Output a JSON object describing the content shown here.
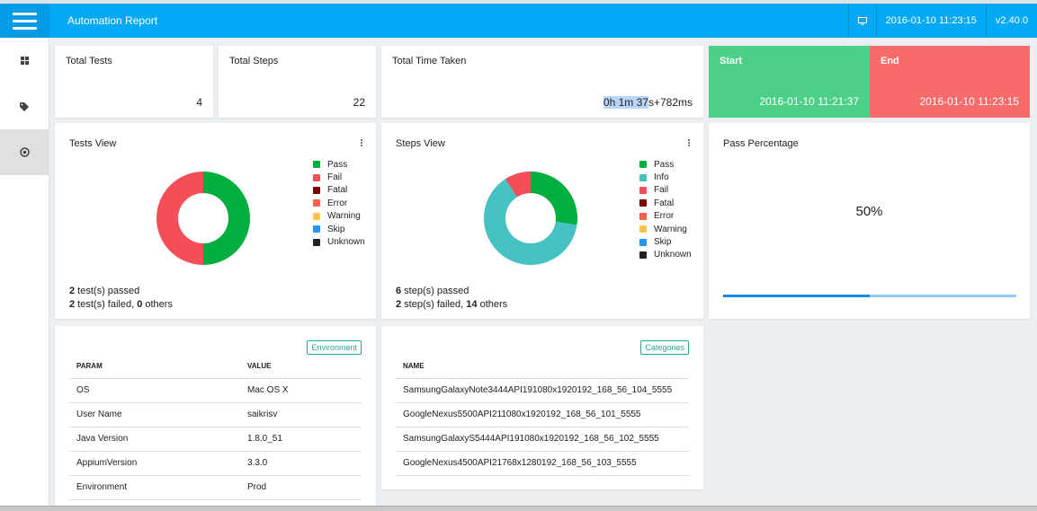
{
  "navbar": {
    "title": "Automation Report",
    "icon": "monitor-icon",
    "datetime": "2016-01-10 11:23:15",
    "version": "v2.40.0"
  },
  "sidebar": {
    "items": [
      {
        "icon": "dashboard-icon"
      },
      {
        "icon": "tag-icon"
      },
      {
        "icon": "target-icon"
      }
    ]
  },
  "stats": {
    "total_tests": {
      "label": "Total Tests",
      "value": "4"
    },
    "total_steps": {
      "label": "Total Steps",
      "value": "22"
    },
    "total_time": {
      "label": "Total Time Taken",
      "value_highlighted": "0h 1m 37",
      "value_rest": "s+782ms"
    },
    "start": {
      "label": "Start",
      "value": "2016-01-10 11:21:37"
    },
    "end": {
      "label": "End",
      "value": "2016-01-10 11:23:15"
    }
  },
  "tests_view": {
    "title": "Tests View",
    "legend": [
      "Pass",
      "Fail",
      "Fatal",
      "Error",
      "Warning",
      "Skip",
      "Unknown"
    ],
    "summary": {
      "passed_count": "2",
      "passed_text": " test(s) passed",
      "failed_count": "2",
      "failed_text": " test(s) failed, ",
      "others_count": "0",
      "others_text": " others"
    }
  },
  "steps_view": {
    "title": "Steps View",
    "legend": [
      "Pass",
      "Info",
      "Fail",
      "Fatal",
      "Error",
      "Warning",
      "Skip",
      "Unknown"
    ],
    "summary": {
      "passed_count": "6",
      "passed_text": " step(s) passed",
      "failed_count": "2",
      "failed_text": " step(s) failed, ",
      "others_count": "14",
      "others_text": " others"
    }
  },
  "pass_percentage": {
    "title": "Pass Percentage",
    "value": "50%",
    "fraction": 0.5
  },
  "environment": {
    "badge": "Environment",
    "headers": [
      "PARAM",
      "VALUE"
    ],
    "rows": [
      [
        "OS",
        "Mac OS X"
      ],
      [
        "User Name",
        "saikrisv"
      ],
      [
        "Java Version",
        "1.8.0_51"
      ],
      [
        "AppiumVersion",
        "3.3.0"
      ],
      [
        "Environment",
        "Prod"
      ]
    ]
  },
  "categories": {
    "badge": "Categories",
    "header": "NAME",
    "rows": [
      "SamsungGalaxyNote3444API191080x1920192_168_56_104_5555",
      "GoogleNexus5500API211080x1920192_168_56_101_5555",
      "SamsungGalaxyS5444API191080x1920192_168_56_102_5555",
      "GoogleNexus4500API21768x1280192_168_56_103_5555"
    ]
  },
  "colors": {
    "navbar": "#03a9f4",
    "pass": "#00af3e",
    "fail": "#f44f58",
    "fatal": "#7f0000",
    "error": "#ff6347",
    "warning": "#ffc04d",
    "skip": "#2196f3",
    "unknown": "#222222",
    "info": "#46c2c2",
    "start": "#4cd087",
    "end": "#f76b6b"
  },
  "chart_data": [
    {
      "type": "pie",
      "title": "Tests View",
      "categories": [
        "Pass",
        "Fail",
        "Fatal",
        "Error",
        "Warning",
        "Skip",
        "Unknown"
      ],
      "values": [
        2,
        2,
        0,
        0,
        0,
        0,
        0
      ]
    },
    {
      "type": "pie",
      "title": "Steps View",
      "categories": [
        "Pass",
        "Info",
        "Fail",
        "Fatal",
        "Error",
        "Warning",
        "Skip",
        "Unknown"
      ],
      "values": [
        6,
        14,
        2,
        0,
        0,
        0,
        0,
        0
      ]
    }
  ]
}
